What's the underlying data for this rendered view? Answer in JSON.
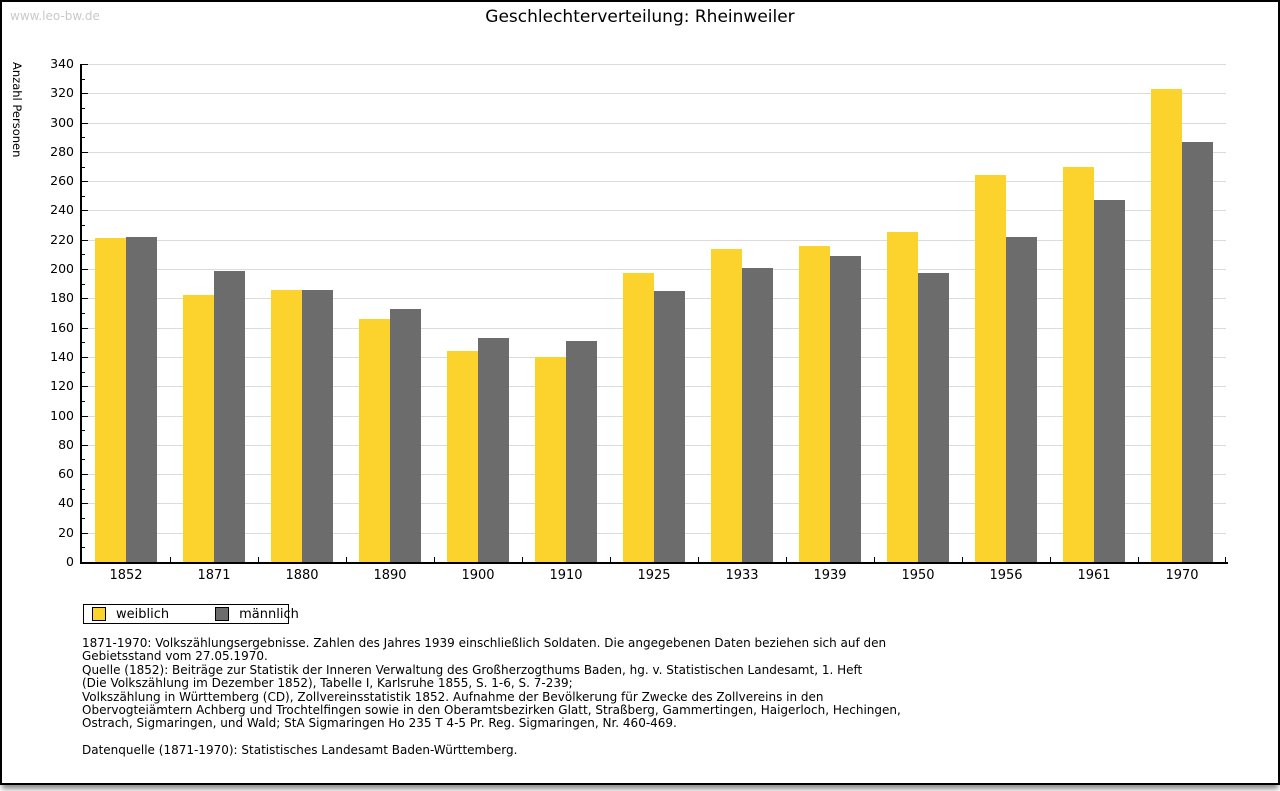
{
  "watermark": "www.leo-bw.de",
  "title": "Geschlechterverteilung: Rheinweiler",
  "chart_data": {
    "type": "bar",
    "title": "Geschlechterverteilung: Rheinweiler",
    "xlabel": "",
    "ylabel": "Anzahl Personen",
    "ylim": [
      0,
      340
    ],
    "ytick_major": 20,
    "ytick_minor": 10,
    "grid": true,
    "legend_position": "bottom-left",
    "categories": [
      "1852",
      "1871",
      "1880",
      "1890",
      "1900",
      "1910",
      "1925",
      "1933",
      "1939",
      "1950",
      "1956",
      "1961",
      "1970"
    ],
    "series": [
      {
        "name": "weiblich",
        "color": "#FCD22C",
        "values": [
          221,
          182,
          186,
          166,
          144,
          140,
          197,
          214,
          216,
          225,
          264,
          270,
          323
        ]
      },
      {
        "name": "männlich",
        "color": "#6C6C6C",
        "values": [
          222,
          199,
          186,
          173,
          153,
          151,
          185,
          201,
          209,
          197,
          222,
          247,
          287
        ]
      }
    ]
  },
  "footnotes": {
    "lines": [
      "1871-1970: Volkszählungsergebnisse. Zahlen des Jahres 1939 einschließlich Soldaten. Die angegebenen Daten beziehen sich auf den",
      "Gebietsstand vom 27.05.1970.",
      "Quelle (1852): Beiträge zur Statistik der Inneren Verwaltung des Großherzogthums Baden, hg. v. Statistischen Landesamt, 1. Heft",
      "(Die Volkszählung im Dezember 1852), Tabelle I, Karlsruhe 1855, S. 1-6, S. 7-239;",
      "Volkszählung in Württemberg (CD), Zollvereinsstatistik 1852. Aufnahme der Bevölkerung für Zwecke des Zollvereins in den",
      "Obervogteiämtern Achberg und Trochtelfingen sowie in den Oberamtsbezirken Glatt, Straßberg, Gammertingen, Haigerloch, Hechingen,",
      "Ostrach, Sigmaringen, und Wald; StA Sigmaringen Ho 235 T 4-5 Pr. Reg. Sigmaringen, Nr. 460-469."
    ],
    "datasource": "Datenquelle (1871-1970): Statistisches Landesamt Baden-Württemberg."
  }
}
